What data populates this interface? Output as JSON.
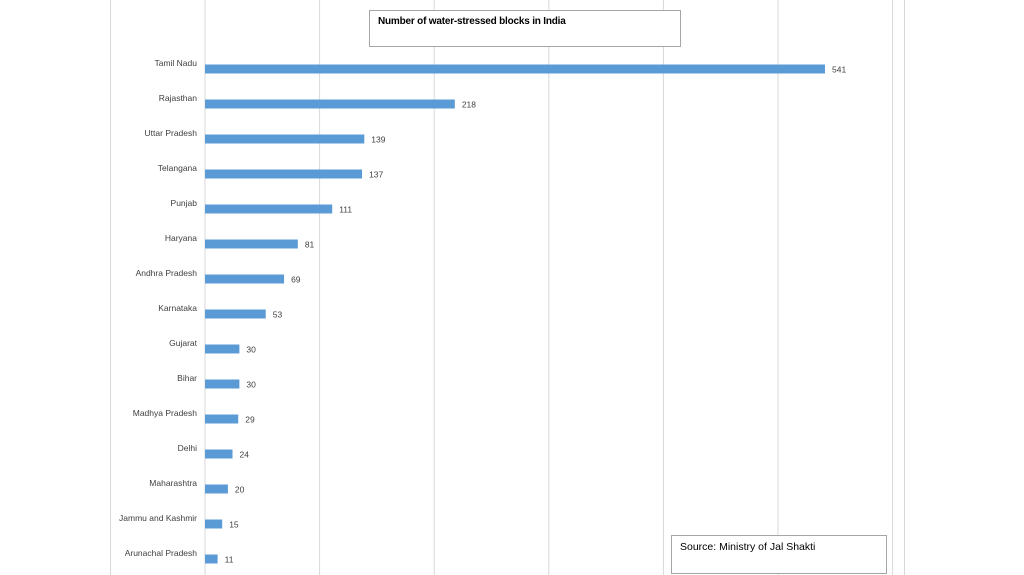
{
  "chart_data": {
    "type": "bar",
    "orientation": "horizontal",
    "title": "Number of water-stressed blocks in India",
    "source": "Source: Ministry of Jal Shakti",
    "categories": [
      "Tamil Nadu",
      "Rajasthan",
      "Uttar Pradesh",
      "Telangana",
      "Punjab",
      "Haryana",
      "Andhra Pradesh",
      "Karnataka",
      "Gujarat",
      "Bihar",
      "Madhya Pradesh",
      "Delhi",
      "Maharashtra",
      "Jammu and Kashmir",
      "Arunachal Pradesh"
    ],
    "values": [
      541,
      218,
      139,
      137,
      111,
      81,
      69,
      53,
      30,
      30,
      29,
      24,
      20,
      15,
      11
    ],
    "data_labels": true,
    "xlim": [
      0,
      600
    ],
    "grid": "vertical",
    "legend": "none",
    "bar_color": "#5b9bd5",
    "gridline_color": "#d9d9d9"
  }
}
